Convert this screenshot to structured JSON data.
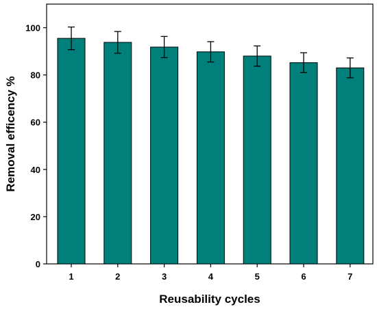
{
  "chart_data": {
    "type": "bar",
    "categories": [
      "1",
      "2",
      "3",
      "4",
      "5",
      "6",
      "7"
    ],
    "values": [
      95.5,
      93.8,
      91.8,
      89.8,
      88.0,
      85.2,
      83.0
    ],
    "errors": [
      4.8,
      4.6,
      4.5,
      4.3,
      4.3,
      4.2,
      4.2
    ],
    "title": "",
    "xlabel": "Reusability cycles",
    "ylabel": "Removal efficency %",
    "ylim": [
      0,
      110
    ],
    "yticks": [
      0,
      20,
      40,
      60,
      80,
      100
    ],
    "grid": false,
    "legend": "none",
    "bar_color": "#007f7b",
    "bar_edge_color": "#000000"
  }
}
